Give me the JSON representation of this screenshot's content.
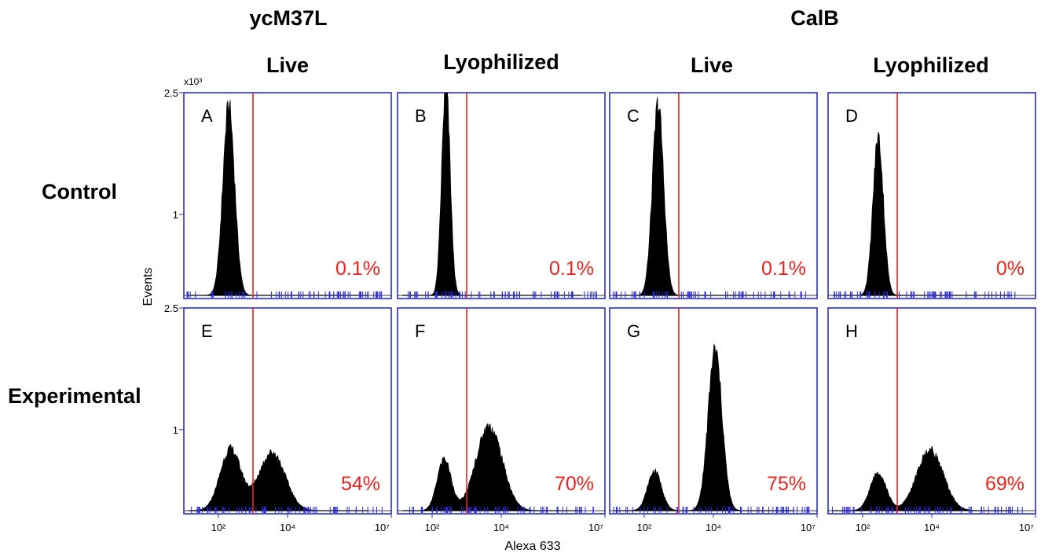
{
  "chart_data": {
    "type": "histogram",
    "column_groups": [
      "ycM37L",
      "CalB"
    ],
    "column_subheaders": [
      "Live",
      "Lyophilized",
      "Live",
      "Lyophilized"
    ],
    "row_labels": [
      "Control",
      "Experimental"
    ],
    "xlabel": "Alexa 633",
    "ylabel": "Events",
    "x_scale": "log",
    "xlim": [
      10,
      10000000
    ],
    "x_ticks": [
      {
        "value": 100,
        "label": "10²"
      },
      {
        "value": 10000,
        "label": "10⁴"
      },
      {
        "value": 10000000,
        "label": "10⁷"
      }
    ],
    "ylim": [
      0,
      2500
    ],
    "y_ticks": [
      {
        "value": 1000,
        "label": "1"
      },
      {
        "value": 2500,
        "label": "2.5"
      }
    ],
    "y_multiplier": "x10³",
    "gate_x": 1000,
    "gate_color": "#e8231f",
    "axis_color": "#2b2bd6",
    "label_color": "#e8231f",
    "panels": [
      {
        "id": "A",
        "row": 0,
        "col": 0,
        "percent": "0.1%",
        "peaks": [
          {
            "center": 2.3,
            "sigma": 0.17,
            "height": 2320
          }
        ]
      },
      {
        "id": "B",
        "row": 0,
        "col": 1,
        "percent": "0.1%",
        "peaks": [
          {
            "center": 2.4,
            "sigma": 0.12,
            "height": 2600
          }
        ]
      },
      {
        "id": "C",
        "row": 0,
        "col": 2,
        "percent": "0.1%",
        "peaks": [
          {
            "center": 2.4,
            "sigma": 0.16,
            "height": 2360
          }
        ]
      },
      {
        "id": "D",
        "row": 0,
        "col": 3,
        "percent": "0%",
        "peaks": [
          {
            "center": 2.45,
            "sigma": 0.15,
            "height": 1950
          }
        ]
      },
      {
        "id": "E",
        "row": 1,
        "col": 0,
        "percent": "54%",
        "peaks": [
          {
            "center": 2.35,
            "sigma": 0.3,
            "height": 760
          },
          {
            "center": 3.55,
            "sigma": 0.38,
            "height": 720
          }
        ]
      },
      {
        "id": "F",
        "row": 1,
        "col": 1,
        "percent": "70%",
        "peaks": [
          {
            "center": 2.35,
            "sigma": 0.2,
            "height": 640
          },
          {
            "center": 3.65,
            "sigma": 0.38,
            "height": 1040
          }
        ]
      },
      {
        "id": "G",
        "row": 1,
        "col": 2,
        "percent": "75%",
        "peaks": [
          {
            "center": 2.3,
            "sigma": 0.2,
            "height": 490
          },
          {
            "center": 4.05,
            "sigma": 0.2,
            "height": 1980
          }
        ]
      },
      {
        "id": "H",
        "row": 1,
        "col": 3,
        "percent": "69%",
        "peaks": [
          {
            "center": 2.45,
            "sigma": 0.23,
            "height": 470
          },
          {
            "center": 3.95,
            "sigma": 0.38,
            "height": 750
          }
        ]
      }
    ]
  }
}
